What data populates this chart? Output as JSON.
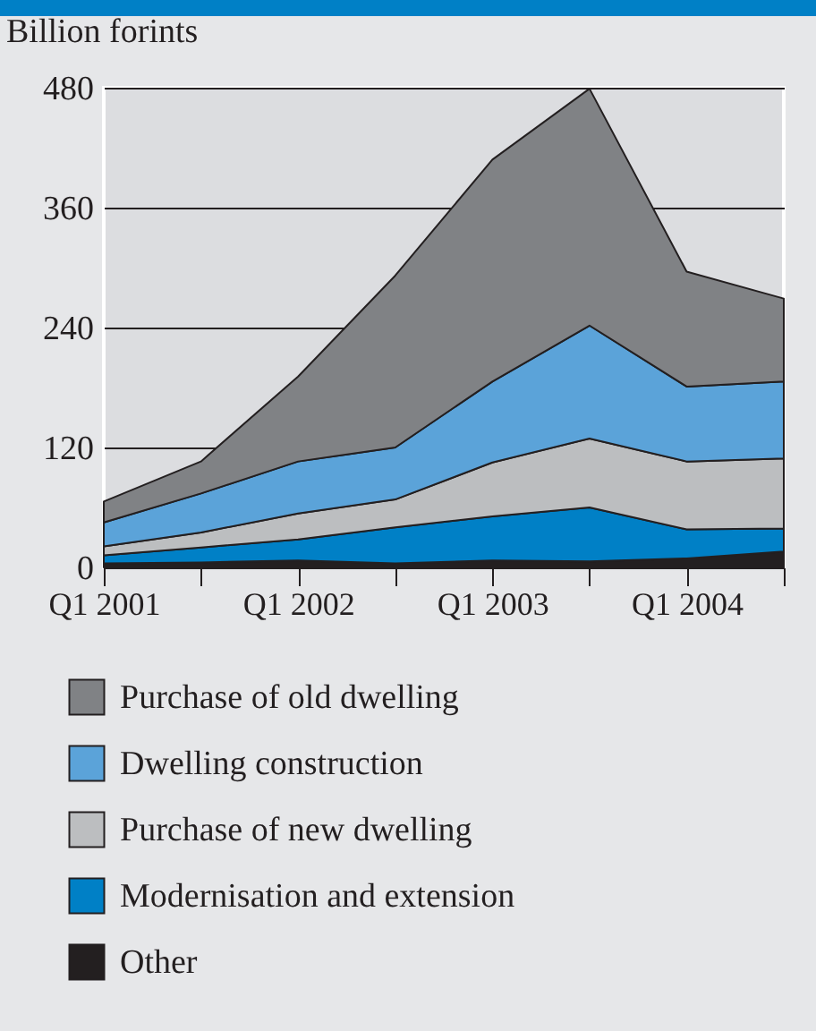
{
  "chart_data": {
    "type": "area",
    "ylabel": "Billion forints",
    "stacked": true,
    "categories": [
      "Q1 2001",
      null,
      "Q1 2002",
      null,
      "Q1 2003",
      null,
      "Q1 2004",
      null
    ],
    "series": [
      {
        "name": "Other",
        "color": "#231f20",
        "values": [
          4,
          5,
          7,
          4,
          7,
          6,
          9,
          16
        ]
      },
      {
        "name": "Modernisation and extension",
        "color": "#0080c6",
        "values": [
          8,
          15,
          21,
          36,
          44,
          54,
          29,
          23
        ]
      },
      {
        "name": "Purchase of new dwelling",
        "color": "#bcbec0",
        "values": [
          9,
          15,
          26,
          28,
          54,
          69,
          68,
          70
        ]
      },
      {
        "name": "Dwelling construction",
        "color": "#5ba3d9",
        "values": [
          24,
          39,
          52,
          52,
          81,
          113,
          75,
          77
        ]
      },
      {
        "name": "Purchase of old dwelling",
        "color": "#808285",
        "values": [
          21,
          32,
          85,
          172,
          222,
          237,
          115,
          83
        ]
      }
    ],
    "ylim": [
      0,
      480
    ],
    "yticks": [
      0,
      120,
      240,
      360,
      480
    ],
    "grid": "y",
    "legend": "bottom"
  }
}
